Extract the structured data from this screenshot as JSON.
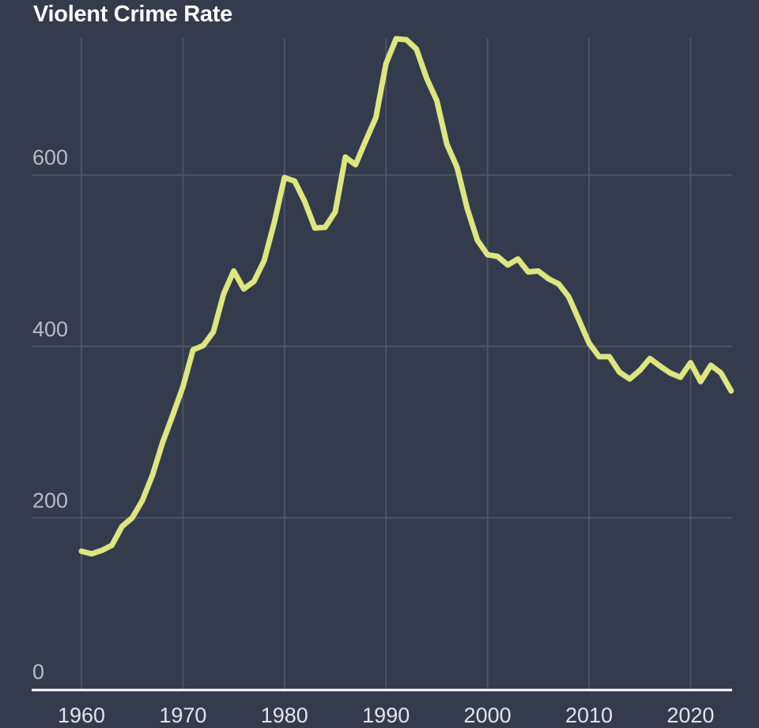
{
  "chart_data": {
    "type": "line",
    "title": "Violent Crime Rate",
    "xlabel": "",
    "ylabel": "",
    "xlim": [
      1960,
      2024
    ],
    "ylim": [
      0,
      760
    ],
    "grid": true,
    "legend": null,
    "x_ticks": [
      1960,
      1970,
      1980,
      1990,
      2000,
      2010,
      2020
    ],
    "y_ticks": [
      0,
      200,
      400,
      600
    ],
    "series": [
      {
        "name": "Violent Crime Rate",
        "color": "#dde67f",
        "x": [
          1960,
          1961,
          1962,
          1963,
          1964,
          1965,
          1966,
          1967,
          1968,
          1969,
          1970,
          1971,
          1972,
          1973,
          1974,
          1975,
          1976,
          1977,
          1978,
          1979,
          1980,
          1981,
          1982,
          1983,
          1984,
          1985,
          1986,
          1987,
          1988,
          1989,
          1990,
          1991,
          1992,
          1993,
          1994,
          1995,
          1996,
          1997,
          1998,
          1999,
          2000,
          2001,
          2002,
          2003,
          2004,
          2005,
          2006,
          2007,
          2008,
          2009,
          2010,
          2011,
          2012,
          2013,
          2014,
          2015,
          2016,
          2017,
          2018,
          2019,
          2020,
          2021,
          2022,
          2023,
          2024
        ],
        "values": [
          161,
          158,
          162,
          168,
          190,
          200,
          220,
          250,
          288,
          320,
          353,
          396,
          401,
          417,
          461,
          488,
          467,
          476,
          500,
          545,
          597,
          593,
          569,
          538,
          539,
          557,
          621,
          612,
          640,
          667,
          730,
          759,
          758,
          747,
          713,
          687,
          636,
          609,
          561,
          524,
          507,
          505,
          495,
          502,
          487,
          488,
          479,
          473,
          458,
          431,
          404,
          388,
          388,
          370,
          362,
          372,
          386,
          377,
          369,
          364,
          381,
          359,
          378,
          369,
          348
        ]
      }
    ]
  },
  "colors": {
    "background": "#333b4c",
    "grid": "#4c5466",
    "axis": "#ffffff",
    "line": "#dde67f"
  }
}
